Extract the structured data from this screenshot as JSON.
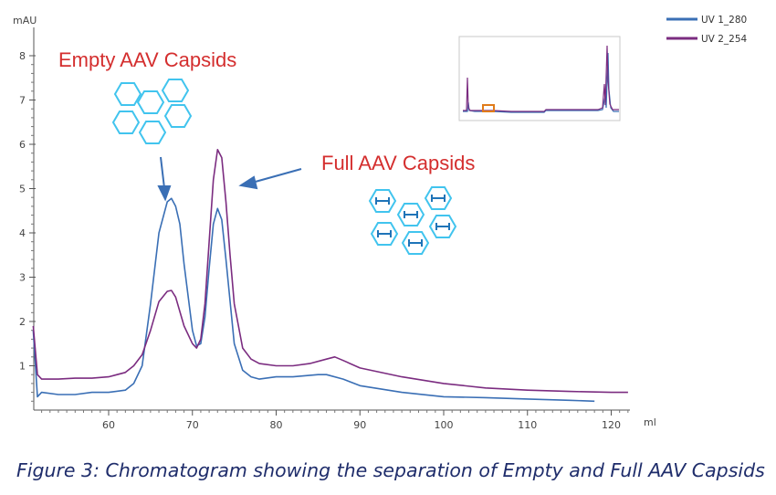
{
  "caption": "Figure 3: Chromatogram showing the separation of Empty and Full AAV Capsids",
  "chart_data": {
    "type": "line",
    "ylabel": "mAU",
    "xlabel": "ml",
    "xlim": [
      51,
      123
    ],
    "ylim": [
      0,
      9
    ],
    "x_ticks": [
      60,
      70,
      80,
      90,
      100,
      110,
      120
    ],
    "y_ticks": [
      1,
      2,
      3,
      4,
      5,
      6,
      7,
      8
    ],
    "grid": false,
    "legend_position": "top-right",
    "annotations": [
      {
        "text": "Empty AAV Capsids",
        "color": "#d42e2e"
      },
      {
        "text": "Full AAV Capsids",
        "color": "#d42e2e"
      }
    ],
    "series": [
      {
        "name": "UV 1_280",
        "color": "#3a6fb5",
        "x": [
          51,
          51.5,
          52,
          54,
          56,
          58,
          60,
          62,
          63,
          64,
          65,
          66,
          67,
          67.5,
          68,
          68.5,
          69,
          70,
          70.5,
          71,
          71.5,
          72,
          72.5,
          73,
          73.5,
          74,
          75,
          76,
          77,
          78,
          80,
          82,
          85,
          86,
          88,
          90,
          95,
          100,
          105,
          110,
          115,
          118
        ],
        "values": [
          1.8,
          0.3,
          0.4,
          0.35,
          0.35,
          0.4,
          0.4,
          0.45,
          0.6,
          1.0,
          2.4,
          4.0,
          4.7,
          4.78,
          4.6,
          4.2,
          3.3,
          1.8,
          1.45,
          1.5,
          2.1,
          3.2,
          4.2,
          4.55,
          4.3,
          3.4,
          1.5,
          0.9,
          0.75,
          0.7,
          0.75,
          0.75,
          0.8,
          0.8,
          0.7,
          0.55,
          0.4,
          0.3,
          0.28,
          0.25,
          0.22,
          0.2
        ]
      },
      {
        "name": "UV 2_254",
        "color": "#7b2c80",
        "x": [
          51,
          51.5,
          52,
          54,
          56,
          58,
          60,
          62,
          63,
          64,
          65,
          66,
          67,
          67.5,
          68,
          69,
          70,
          70.5,
          71,
          71.5,
          72,
          72.5,
          73,
          73.5,
          74,
          74.5,
          75,
          76,
          77,
          78,
          80,
          82,
          84,
          86,
          87,
          88,
          90,
          95,
          100,
          105,
          110,
          115,
          120,
          122
        ],
        "values": [
          1.9,
          0.8,
          0.7,
          0.7,
          0.72,
          0.72,
          0.75,
          0.85,
          1.0,
          1.25,
          1.8,
          2.45,
          2.68,
          2.7,
          2.55,
          1.9,
          1.5,
          1.4,
          1.6,
          2.4,
          3.8,
          5.2,
          5.88,
          5.7,
          4.7,
          3.5,
          2.4,
          1.4,
          1.15,
          1.05,
          1.0,
          1.0,
          1.05,
          1.15,
          1.2,
          1.12,
          0.95,
          0.75,
          0.6,
          0.5,
          0.45,
          0.42,
          0.4,
          0.4
        ]
      }
    ]
  }
}
